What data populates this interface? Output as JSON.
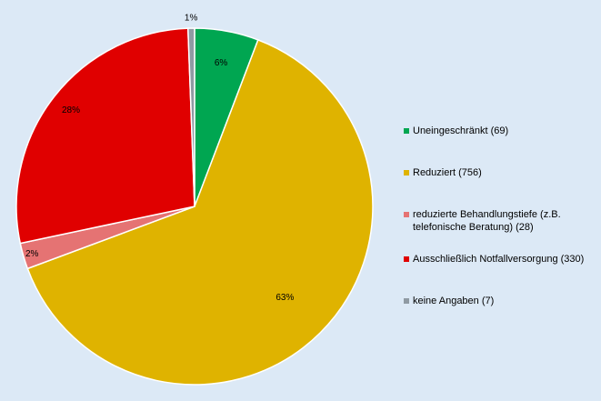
{
  "chart_data": {
    "type": "pie",
    "slices": [
      {
        "label": "Uneingeschränkt (69)",
        "value": 69,
        "percent_label": "6%",
        "color": "#00a651"
      },
      {
        "label": "Reduziert (756)",
        "value": 756,
        "percent_label": "63%",
        "color": "#dfb300"
      },
      {
        "label": "reduzierte Behandlungstiefe (z.B. telefonische Beratung) (28)",
        "value": 28,
        "percent_label": "2%",
        "color": "#e57373"
      },
      {
        "label": "Ausschließlich Notfallversorgung (330)",
        "value": 330,
        "percent_label": "28%",
        "color": "#e00000"
      },
      {
        "label": "keine Angaben (7)",
        "value": 7,
        "percent_label": "1%",
        "color": "#8f9aa3"
      }
    ],
    "legend_position": "right"
  }
}
